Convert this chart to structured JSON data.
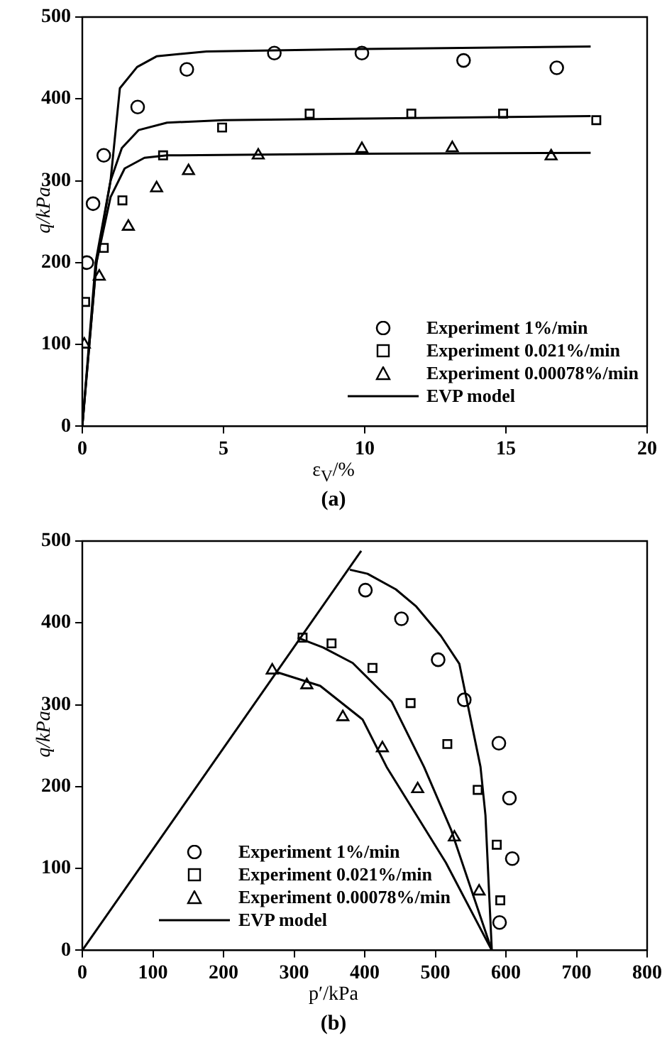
{
  "chart_data": [
    {
      "type": "scatter",
      "title": "(a)",
      "xlabel": "ε$_{V}$/%",
      "ylabel": "q/kPa",
      "xlim": [
        0,
        20
      ],
      "xticks": [
        0,
        5,
        10,
        15,
        20
      ],
      "ylim": [
        0,
        500
      ],
      "yticks": [
        0,
        100,
        200,
        300,
        400,
        500
      ],
      "grid": false,
      "legend": "bottom right",
      "series": [
        {
          "name": "Experiment 1%/min",
          "type": "scatter",
          "marker": "circle",
          "color": "#000000",
          "x": [
            0.16,
            0.38,
            0.76,
            1.96,
            3.7,
            6.8,
            9.9,
            13.5,
            16.8
          ],
          "values": [
            200,
            272,
            331,
            390,
            436,
            456,
            456,
            447,
            438
          ]
        },
        {
          "name": "Experiment 0.021%/min",
          "type": "scatter",
          "marker": "square",
          "color": "#000000",
          "x": [
            0.1,
            0.76,
            1.42,
            2.86,
            4.95,
            8.05,
            11.65,
            14.9,
            18.2
          ],
          "values": [
            152,
            218,
            276,
            331,
            365,
            382,
            382,
            382,
            374
          ]
        },
        {
          "name": "Experiment 0.00078%/min",
          "type": "scatter",
          "marker": "triangle",
          "color": "#000000",
          "x": [
            0.07,
            0.6,
            1.63,
            2.63,
            3.76,
            6.23,
            9.9,
            13.1,
            16.6
          ],
          "values": [
            100,
            183,
            244,
            291,
            312,
            331,
            339,
            340,
            330
          ]
        },
        {
          "name": "EVP model",
          "type": "line",
          "marker": "none",
          "line_style": "solid",
          "color": "#000000",
          "x": [
            0,
            0.47,
            1.0,
            1.33,
            1.94,
            2.63,
            4.4,
            10,
            18
          ],
          "values": [
            0,
            200,
            300,
            413,
            439,
            452,
            458,
            461,
            464
          ]
        },
        {
          "type": "line",
          "marker": "none",
          "line_style": "solid",
          "color": "#000000",
          "x": [
            0,
            0.5,
            1.0,
            1.4,
            2,
            3,
            5,
            10,
            18
          ],
          "values": [
            0,
            200,
            300,
            340,
            362,
            371,
            374,
            376,
            379
          ]
        },
        {
          "type": "line",
          "marker": "none",
          "line_style": "solid",
          "color": "#000000",
          "x": [
            0,
            0.5,
            1.0,
            1.5,
            2.2,
            3,
            10,
            18
          ],
          "values": [
            0,
            200,
            280,
            315,
            328,
            331,
            333,
            334
          ]
        }
      ]
    },
    {
      "type": "scatter",
      "title": "(b)",
      "xlabel": "p′/kPa",
      "ylabel": "q/kPa",
      "xlim": [
        0,
        800
      ],
      "xticks": [
        0,
        100,
        200,
        300,
        400,
        500,
        600,
        700,
        800
      ],
      "ylim": [
        0,
        500
      ],
      "yticks": [
        0,
        100,
        200,
        300,
        400,
        500
      ],
      "grid": false,
      "legend": "bottom left",
      "series": [
        {
          "name": "Experiment 1%/min",
          "type": "scatter",
          "marker": "circle",
          "color": "#000000",
          "x": [
            401,
            452,
            504,
            541,
            590,
            605,
            609,
            591
          ],
          "values": [
            440,
            405,
            355,
            306,
            253,
            186,
            112,
            34
          ]
        },
        {
          "name": "Experiment 0.021%/min",
          "type": "scatter",
          "marker": "square",
          "color": "#000000",
          "x": [
            312,
            353,
            411,
            465,
            517,
            560,
            587,
            592
          ],
          "values": [
            382,
            375,
            345,
            302,
            252,
            196,
            129,
            61
          ]
        },
        {
          "name": "Experiment 0.00078%/min",
          "type": "scatter",
          "marker": "triangle",
          "color": "#000000",
          "x": [
            269,
            318,
            369,
            425,
            475,
            527,
            562
          ],
          "values": [
            342,
            324,
            285,
            247,
            197,
            138,
            72
          ]
        },
        {
          "name": "EVP model",
          "type": "line",
          "marker": "none",
          "line_style": "solid",
          "color": "#000000",
          "x": [
            379,
            404,
            444,
            473,
            508,
            534,
            564,
            571,
            580
          ],
          "values": [
            465,
            460,
            441,
            420,
            384,
            350,
            224,
            165,
            0
          ]
        },
        {
          "type": "line",
          "marker": "none",
          "line_style": "solid",
          "color": "#000000",
          "x": [
            305,
            341,
            383,
            438,
            484,
            522,
            580
          ],
          "values": [
            382,
            370,
            351,
            304,
            224,
            148,
            0
          ]
        },
        {
          "type": "line",
          "marker": "none",
          "line_style": "solid",
          "color": "#000000",
          "x": [
            275,
            337,
            397,
            431,
            515,
            580
          ],
          "values": [
            340,
            323,
            282,
            224,
            107,
            0
          ]
        },
        {
          "type": "line",
          "marker": "none",
          "line_style": "solid",
          "color": "#000000",
          "x": [
            0,
            395
          ],
          "values": [
            0,
            488
          ]
        }
      ]
    }
  ]
}
